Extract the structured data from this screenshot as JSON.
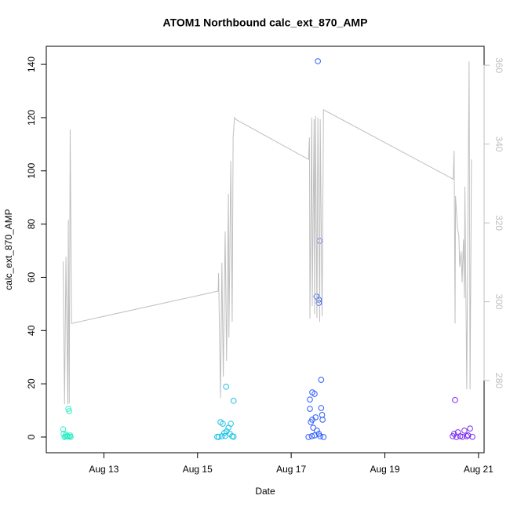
{
  "chart_data": {
    "type": "scatter",
    "title": "ATOM1 Northbound calc_ext_870_AMP",
    "xlabel": "Date",
    "ylabel": "calc_ext_870_AMP",
    "xlim": [
      11.77,
      21.12
    ],
    "ylim": [
      -5.9,
      146.8
    ],
    "y2lim": [
      261.7,
      364.8
    ],
    "xticks": [
      {
        "value": 13,
        "label": "Aug 13"
      },
      {
        "value": 15,
        "label": "Aug 15"
      },
      {
        "value": 17,
        "label": "Aug 17"
      },
      {
        "value": 19,
        "label": "Aug 19"
      },
      {
        "value": 21,
        "label": "Aug 21"
      }
    ],
    "yticks": [
      0,
      20,
      40,
      60,
      80,
      100,
      120,
      140
    ],
    "y2ticks": [
      280,
      300,
      320,
      340,
      360
    ],
    "series": [
      {
        "type": "scatter",
        "color": "#33eec4",
        "x": [
          12.13,
          12.14,
          12.16,
          12.19,
          12.21,
          12.24,
          12.26,
          12.23,
          12.26,
          12.28,
          12.29,
          12.18
        ],
        "values": [
          2.9,
          1.2,
          0,
          0.9,
          0.3,
          10.6,
          9.7,
          0.2,
          0.1,
          0.6,
          0.1,
          0.2
        ]
      },
      {
        "type": "scatter",
        "color": "#19c3e6",
        "x": [
          15.61,
          15.77,
          15.49,
          15.54,
          15.71,
          15.66,
          15.62,
          15.57,
          15.45,
          15.52,
          15.69,
          15.74,
          15.77,
          15.42,
          15.59
        ],
        "values": [
          18.9,
          13.6,
          5.6,
          5.0,
          5.0,
          3.5,
          2.1,
          1.5,
          0,
          0.3,
          1.2,
          0.3,
          0.1,
          0.1,
          0.4
        ]
      },
      {
        "type": "scatter",
        "color": "#2b5cff",
        "x": [
          17.57,
          17.61,
          17.54,
          17.59,
          17.59,
          17.64,
          17.45,
          17.5,
          17.4,
          17.64,
          17.4,
          17.66,
          17.52,
          17.45,
          17.67,
          17.42,
          17.47,
          17.55,
          17.37,
          17.44,
          17.5,
          17.62,
          17.69,
          17.59
        ],
        "values": [
          141.2,
          73.7,
          52.8,
          51.6,
          50.4,
          21.5,
          16.8,
          16.2,
          14.1,
          10.9,
          10.6,
          8.3,
          7.4,
          6.5,
          6.5,
          5.6,
          3.5,
          2.4,
          0,
          0.3,
          0.6,
          0.3,
          0,
          1.2
        ]
      },
      {
        "type": "scatter",
        "color": "#7a2bf5",
        "x": [
          20.5,
          20.82,
          20.7,
          20.56,
          20.48,
          20.53,
          20.61,
          20.66,
          20.75,
          20.78,
          20.87,
          20.45
        ],
        "values": [
          13.9,
          3.2,
          2.4,
          1.8,
          1.2,
          0,
          0.3,
          0.1,
          0.3,
          0.6,
          0.1,
          0.3
        ]
      },
      {
        "type": "line",
        "axis": "y2",
        "color": "#bfbfbf",
        "x": [
          12.13,
          12.16,
          12.19,
          12.23,
          12.24,
          12.26,
          12.28,
          12.31,
          15.44,
          15.45,
          15.49,
          15.52,
          15.55,
          15.59,
          15.62,
          15.66,
          15.67,
          15.71,
          15.74,
          15.76,
          15.79,
          15.81,
          17.37,
          17.39,
          17.4,
          17.44,
          17.45,
          17.49,
          17.5,
          17.52,
          17.55,
          17.57,
          17.61,
          17.62,
          17.66,
          17.69,
          20.46,
          20.48,
          20.5,
          20.51,
          20.55,
          20.58,
          20.6,
          20.63,
          20.65,
          20.68,
          20.7,
          20.71,
          20.75,
          20.76,
          20.8,
          20.82,
          20.85
        ],
        "values": [
          310.2,
          274.0,
          311.4,
          274.0,
          320.8,
          274.2,
          343.7,
          294.5,
          302.7,
          307.3,
          275.6,
          309.9,
          281.0,
          317.8,
          285.0,
          327.4,
          290.9,
          335.7,
          294.9,
          341.7,
          346.7,
          346.3,
          336.1,
          341.7,
          295.7,
          346.7,
          298.9,
          346.3,
          296.9,
          347.1,
          295.9,
          346.7,
          294.9,
          346.3,
          296.3,
          348.7,
          331.1,
          338.3,
          294.5,
          326.8,
          318.8,
          316.8,
          308.9,
          312.8,
          304.9,
          315.8,
          300.9,
          329.2,
          277.8,
          296.9,
          361.0,
          277.8,
          336.1
        ]
      }
    ]
  }
}
